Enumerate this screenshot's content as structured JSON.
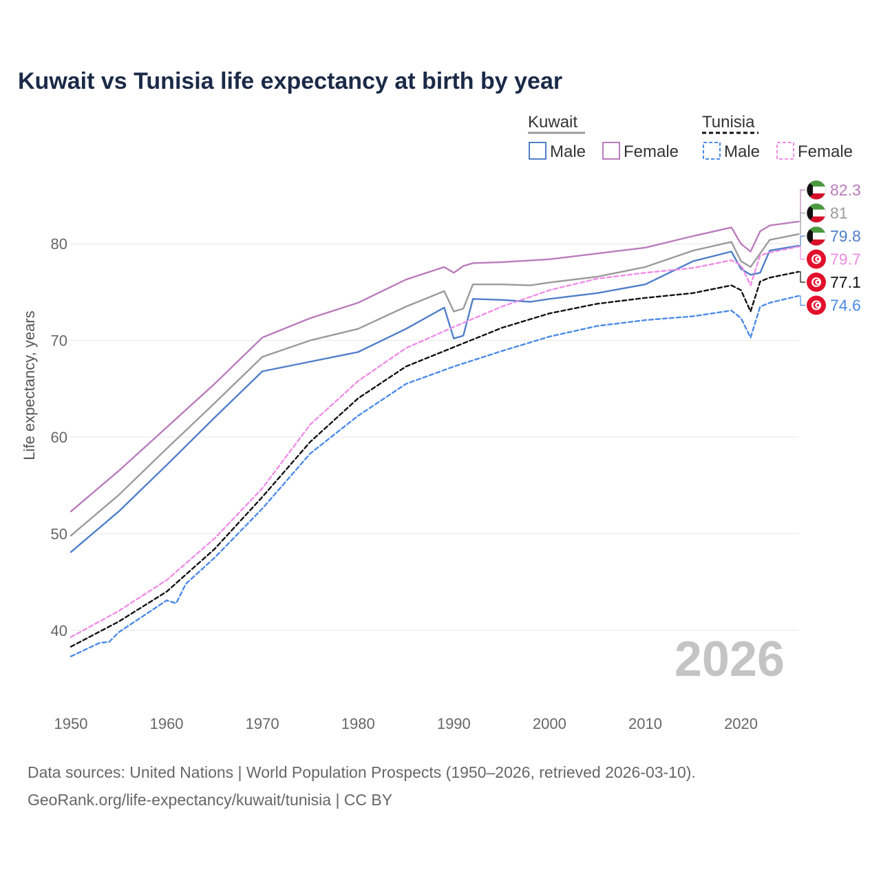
{
  "chart_data": {
    "type": "line",
    "title": "Kuwait vs Tunisia life expectancy at birth by year",
    "ylabel": "Life expectancy, years",
    "xlabel": "",
    "xlim": [
      1950,
      2026
    ],
    "ylim": [
      34,
      86
    ],
    "xticks": [
      1950,
      1960,
      1970,
      1980,
      1990,
      2000,
      2010,
      2020
    ],
    "yticks": [
      40,
      50,
      60,
      70,
      80
    ],
    "year_watermark": "2026",
    "legend": {
      "groups": [
        {
          "name": "Kuwait",
          "entries": [
            "Male",
            "Female"
          ],
          "style": "solid",
          "group_color": "#999999"
        },
        {
          "name": "Tunisia",
          "entries": [
            "Male",
            "Female"
          ],
          "style": "dashed",
          "group_color": "#111111"
        }
      ]
    },
    "series": [
      {
        "name": "Kuwait Female",
        "country": "Kuwait",
        "color": "#b97cbc",
        "dash": false,
        "end_label": "82.3",
        "points": [
          [
            1950,
            52.3
          ],
          [
            1955,
            56.5
          ],
          [
            1960,
            61
          ],
          [
            1965,
            65.5
          ],
          [
            1970,
            70.3
          ],
          [
            1975,
            72.3
          ],
          [
            1980,
            73.9
          ],
          [
            1985,
            76.3
          ],
          [
            1989,
            77.6
          ],
          [
            1990,
            77
          ],
          [
            1991,
            77.7
          ],
          [
            1992,
            78
          ],
          [
            1995,
            78.1
          ],
          [
            2000,
            78.4
          ],
          [
            2005,
            79
          ],
          [
            2010,
            79.6
          ],
          [
            2015,
            80.8
          ],
          [
            2019,
            81.7
          ],
          [
            2020,
            80
          ],
          [
            2021,
            79.2
          ],
          [
            2022,
            81.3
          ],
          [
            2023,
            81.9
          ],
          [
            2026,
            82.3
          ]
        ]
      },
      {
        "name": "Kuwait Total",
        "country": "Kuwait",
        "color": "#9a9a9a",
        "dash": false,
        "end_label": "81",
        "points": [
          [
            1950,
            49.8
          ],
          [
            1955,
            54
          ],
          [
            1960,
            58.8
          ],
          [
            1965,
            63.5
          ],
          [
            1970,
            68.3
          ],
          [
            1975,
            70
          ],
          [
            1980,
            71.2
          ],
          [
            1985,
            73.5
          ],
          [
            1989,
            75.1
          ],
          [
            1990,
            73
          ],
          [
            1991,
            73.3
          ],
          [
            1992,
            75.8
          ],
          [
            1995,
            75.8
          ],
          [
            1998,
            75.7
          ],
          [
            2000,
            76
          ],
          [
            2005,
            76.6
          ],
          [
            2010,
            77.6
          ],
          [
            2015,
            79.3
          ],
          [
            2019,
            80.2
          ],
          [
            2020,
            78.2
          ],
          [
            2021,
            77.6
          ],
          [
            2022,
            79
          ],
          [
            2023,
            80.4
          ],
          [
            2026,
            81
          ]
        ]
      },
      {
        "name": "Kuwait Male",
        "country": "Kuwait",
        "color": "#4f7ec9",
        "dash": false,
        "end_label": "79.8",
        "points": [
          [
            1950,
            48.1
          ],
          [
            1955,
            52.3
          ],
          [
            1960,
            57.1
          ],
          [
            1965,
            62
          ],
          [
            1970,
            66.8
          ],
          [
            1975,
            67.8
          ],
          [
            1980,
            68.8
          ],
          [
            1985,
            71.2
          ],
          [
            1989,
            73.4
          ],
          [
            1990,
            70.2
          ],
          [
            1991,
            70.5
          ],
          [
            1992,
            74.3
          ],
          [
            1995,
            74.2
          ],
          [
            1998,
            74
          ],
          [
            2000,
            74.3
          ],
          [
            2005,
            74.9
          ],
          [
            2010,
            75.8
          ],
          [
            2015,
            78.2
          ],
          [
            2019,
            79.2
          ],
          [
            2020,
            77.4
          ],
          [
            2021,
            76.8
          ],
          [
            2022,
            77
          ],
          [
            2023,
            79.3
          ],
          [
            2026,
            79.8
          ]
        ]
      },
      {
        "name": "Tunisia Female",
        "country": "Tunisia",
        "color": "#f08ce8",
        "dash": true,
        "end_label": "79.7",
        "points": [
          [
            1950,
            39.3
          ],
          [
            1955,
            42
          ],
          [
            1960,
            45.2
          ],
          [
            1965,
            49.5
          ],
          [
            1970,
            54.7
          ],
          [
            1975,
            61.3
          ],
          [
            1980,
            65.8
          ],
          [
            1985,
            69.2
          ],
          [
            1990,
            71.4
          ],
          [
            1995,
            73.5
          ],
          [
            2000,
            75.2
          ],
          [
            2005,
            76.4
          ],
          [
            2010,
            77
          ],
          [
            2015,
            77.5
          ],
          [
            2019,
            78.3
          ],
          [
            2020,
            77.8
          ],
          [
            2021,
            75.7
          ],
          [
            2022,
            78.8
          ],
          [
            2023,
            79.1
          ],
          [
            2026,
            79.7
          ]
        ]
      },
      {
        "name": "Tunisia Total",
        "country": "Tunisia",
        "color": "#111111",
        "dash": true,
        "end_label": "77.1",
        "points": [
          [
            1950,
            38.3
          ],
          [
            1955,
            40.9
          ],
          [
            1960,
            44
          ],
          [
            1965,
            48.4
          ],
          [
            1970,
            53.8
          ],
          [
            1975,
            59.5
          ],
          [
            1980,
            64
          ],
          [
            1985,
            67.3
          ],
          [
            1990,
            69.3
          ],
          [
            1995,
            71.3
          ],
          [
            2000,
            72.8
          ],
          [
            2005,
            73.8
          ],
          [
            2010,
            74.4
          ],
          [
            2015,
            74.9
          ],
          [
            2019,
            75.7
          ],
          [
            2020,
            75.2
          ],
          [
            2021,
            73
          ],
          [
            2022,
            76.1
          ],
          [
            2023,
            76.5
          ],
          [
            2026,
            77.1
          ]
        ]
      },
      {
        "name": "Tunisia Male",
        "country": "Tunisia",
        "color": "#4a8ae8",
        "dash": true,
        "end_label": "74.6",
        "points": [
          [
            1950,
            37.3
          ],
          [
            1953,
            38.7
          ],
          [
            1954,
            38.8
          ],
          [
            1955,
            39.8
          ],
          [
            1960,
            43.1
          ],
          [
            1961,
            42.8
          ],
          [
            1962,
            44.8
          ],
          [
            1965,
            47.5
          ],
          [
            1970,
            52.6
          ],
          [
            1975,
            58.3
          ],
          [
            1980,
            62.2
          ],
          [
            1985,
            65.5
          ],
          [
            1990,
            67.3
          ],
          [
            1995,
            68.9
          ],
          [
            2000,
            70.4
          ],
          [
            2005,
            71.5
          ],
          [
            2010,
            72.1
          ],
          [
            2015,
            72.5
          ],
          [
            2019,
            73.1
          ],
          [
            2020,
            72.3
          ],
          [
            2021,
            70.3
          ],
          [
            2022,
            73.5
          ],
          [
            2023,
            73.9
          ],
          [
            2026,
            74.6
          ]
        ]
      }
    ]
  },
  "source": {
    "line1": "Data sources: United Nations | World Population Prospects (1950–2026, retrieved 2026-03-10).",
    "line2": "GeoRank.org/life-expectancy/kuwait/tunisia | CC BY"
  }
}
